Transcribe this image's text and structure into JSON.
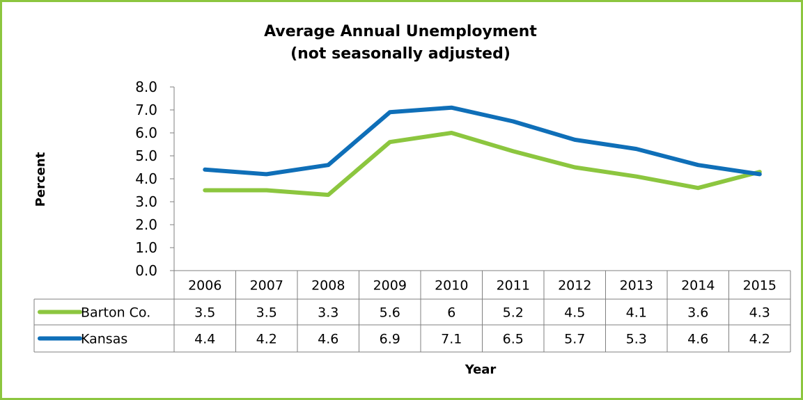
{
  "chart_data": {
    "type": "line",
    "title": "Average Annual Unemployment",
    "subtitle": "(not seasonally adjusted)",
    "xlabel": "Year",
    "ylabel": "Percent",
    "ylim": [
      0,
      8
    ],
    "yticks": [
      "0.0",
      "1.0",
      "2.0",
      "3.0",
      "4.0",
      "5.0",
      "6.0",
      "7.0",
      "8.0"
    ],
    "categories": [
      "2006",
      "2007",
      "2008",
      "2009",
      "2010",
      "2011",
      "2012",
      "2013",
      "2014",
      "2015"
    ],
    "series": [
      {
        "name": "Barton Co.",
        "color": "#8cc63f",
        "values": [
          3.5,
          3.5,
          3.3,
          5.6,
          6,
          5.2,
          4.5,
          4.1,
          3.6,
          4.3
        ],
        "labels": [
          "3.5",
          "3.5",
          "3.3",
          "5.6",
          "6",
          "5.2",
          "4.5",
          "4.1",
          "3.6",
          "4.3"
        ]
      },
      {
        "name": "Kansas",
        "color": "#0f6fb8",
        "values": [
          4.4,
          4.2,
          4.6,
          6.9,
          7.1,
          6.5,
          5.7,
          5.3,
          4.6,
          4.2
        ],
        "labels": [
          "4.4",
          "4.2",
          "4.6",
          "6.9",
          "7.1",
          "6.5",
          "5.7",
          "5.3",
          "4.6",
          "4.2"
        ]
      }
    ],
    "grid": false,
    "legend": "data-table"
  }
}
